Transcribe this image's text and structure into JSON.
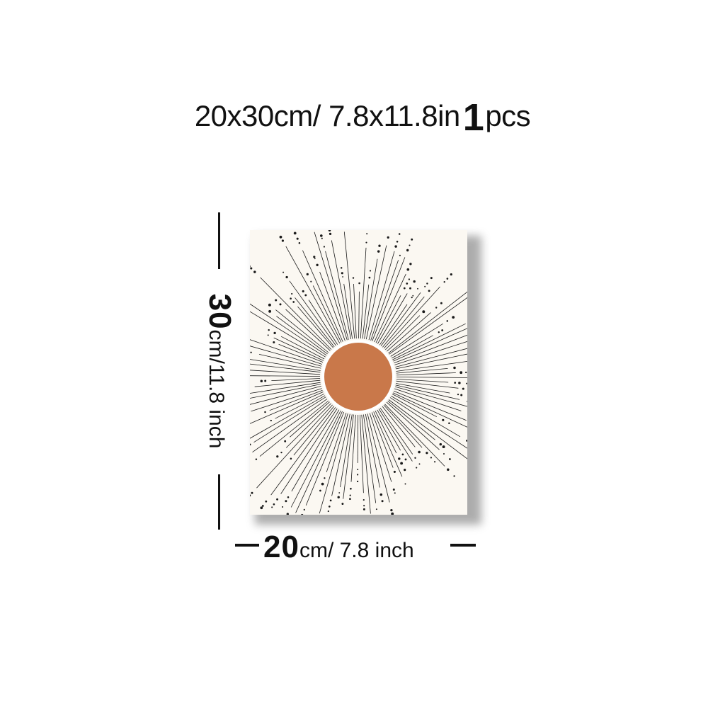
{
  "header": {
    "size_text": "20x30cm/ 7.8x11.8in",
    "quantity_number": "1",
    "quantity_unit": "pcs"
  },
  "dimensions": {
    "height_number": "30",
    "height_unit": "cm/11.8 inch",
    "width_number": "20",
    "width_unit": "cm/ 7.8 inch"
  },
  "poster": {
    "artwork": "boho sunburst with terracotta sun",
    "sun_color": "#c9784a",
    "background_color": "#fbf8f2",
    "ray_color": "#1a1a1a"
  }
}
